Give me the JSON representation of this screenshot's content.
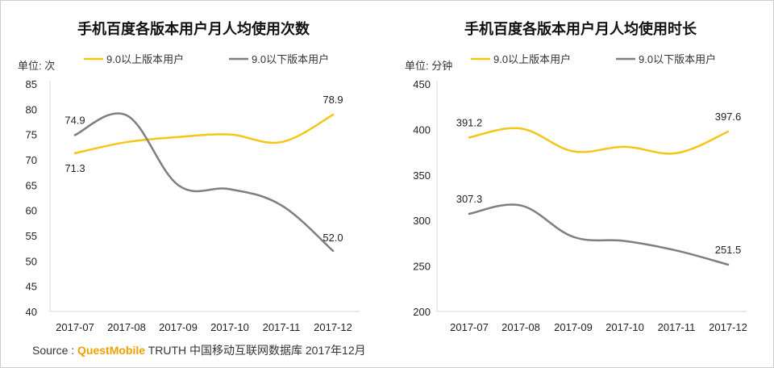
{
  "source": {
    "prefix": "Source :",
    "brand": "QuestMobile",
    "text": "TRUTH 中国移动互联网数据库 2017年12月"
  },
  "colors": {
    "above": "#f5c518",
    "below": "#7f7f7f",
    "axis": "#d9d9d9"
  },
  "chart_data": [
    {
      "type": "line",
      "title": "手机百度各版本用户月人均使用次数",
      "unit": "单位: 次",
      "categories": [
        "2017-07",
        "2017-08",
        "2017-09",
        "2017-10",
        "2017-11",
        "2017-12"
      ],
      "ylim": [
        40,
        85
      ],
      "yticks": [
        40,
        45,
        50,
        55,
        60,
        65,
        70,
        75,
        80,
        85
      ],
      "series": [
        {
          "name": "9.0以上版本用户",
          "color": "#f5c518",
          "values": [
            71.3,
            73.5,
            74.5,
            75.0,
            73.5,
            78.9
          ],
          "labels": [
            "71.3",
            "",
            "",
            "",
            "",
            "78.9"
          ]
        },
        {
          "name": "9.0以下版本用户",
          "color": "#7f7f7f",
          "values": [
            74.9,
            78.8,
            65.0,
            64.2,
            61.0,
            52.0
          ],
          "labels": [
            "74.9",
            "",
            "",
            "",
            "",
            "52.0"
          ]
        }
      ]
    },
    {
      "type": "line",
      "title": "手机百度各版本用户月人均使用时长",
      "unit": "单位: 分钟",
      "categories": [
        "2017-07",
        "2017-08",
        "2017-09",
        "2017-10",
        "2017-11",
        "2017-12"
      ],
      "ylim": [
        200,
        450
      ],
      "yticks": [
        200,
        250,
        300,
        350,
        400,
        450
      ],
      "series": [
        {
          "name": "9.0以上版本用户",
          "color": "#f5c518",
          "values": [
            391.2,
            401.0,
            376.0,
            381.0,
            374.0,
            397.6
          ],
          "labels": [
            "391.2",
            "",
            "",
            "",
            "",
            "397.6"
          ]
        },
        {
          "name": "9.0以下版本用户",
          "color": "#7f7f7f",
          "values": [
            307.3,
            316.5,
            282.0,
            277.5,
            267.0,
            251.5
          ],
          "labels": [
            "307.3",
            "",
            "",
            "",
            "",
            "251.5"
          ]
        }
      ]
    }
  ]
}
